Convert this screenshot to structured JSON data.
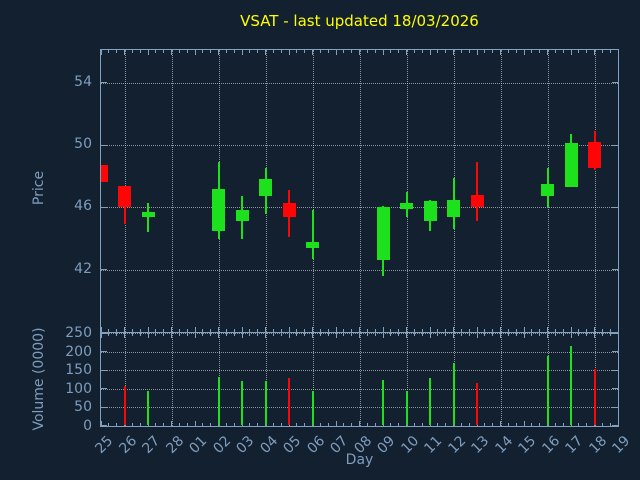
{
  "title": "VSAT - last updated 18/03/2026",
  "colors": {
    "background": "#12202f",
    "frame": "#82a0c0",
    "text": "#7e9dbd",
    "title": "#ffff00",
    "up": "#1ee11e",
    "down": "#ff0505",
    "grid": "rgba(205,213,222,0.65)"
  },
  "price_axis": {
    "label": "Price",
    "ticks": [
      42,
      46,
      50,
      54
    ],
    "range": [
      38.0,
      56.1
    ]
  },
  "volume_axis": {
    "label": "Volume (0000)",
    "ticks": [
      0,
      50,
      100,
      150,
      200,
      250
    ],
    "range": [
      0,
      250
    ]
  },
  "x_axis": {
    "label": "Day",
    "categories": [
      "25",
      "26",
      "27",
      "28",
      "01",
      "02",
      "03",
      "04",
      "05",
      "06",
      "07",
      "08",
      "09",
      "10",
      "11",
      "12",
      "13",
      "14",
      "15",
      "16",
      "17",
      "18",
      "19"
    ],
    "gridline_categories": [
      "26",
      "28",
      "02",
      "04",
      "06",
      "08",
      "10",
      "12",
      "14",
      "16",
      "18"
    ]
  },
  "chart_data": {
    "type": "candlestick",
    "title": "VSAT - last updated 18/03/2026",
    "xlabel": "Day",
    "ylabel": "Price",
    "ylabel2": "Volume (0000)",
    "price_ylim": [
      38.0,
      56.1
    ],
    "volume_ylim": [
      0,
      250
    ],
    "legend": "none",
    "grid": "dotted",
    "categories": [
      "25",
      "26",
      "27",
      "28",
      "01",
      "02",
      "03",
      "04",
      "05",
      "06",
      "07",
      "08",
      "09",
      "10",
      "11",
      "12",
      "13",
      "14",
      "15",
      "16",
      "17",
      "18",
      "19"
    ],
    "candles": [
      {
        "day": "25",
        "open": 48.7,
        "high": 48.7,
        "low": 47.6,
        "close": 47.6,
        "direction": "down",
        "volume": null
      },
      {
        "day": "26",
        "open": 47.4,
        "high": 47.4,
        "low": 44.9,
        "close": 46.0,
        "direction": "down",
        "volume": 108
      },
      {
        "day": "27",
        "open": 45.4,
        "high": 46.3,
        "low": 44.4,
        "close": 45.7,
        "direction": "up",
        "volume": 95
      },
      {
        "day": "02",
        "open": 44.5,
        "high": 48.9,
        "low": 44.0,
        "close": 47.2,
        "direction": "up",
        "volume": 131
      },
      {
        "day": "03",
        "open": 45.1,
        "high": 46.7,
        "low": 44.0,
        "close": 45.8,
        "direction": "up",
        "volume": 120
      },
      {
        "day": "04",
        "open": 46.7,
        "high": 48.5,
        "low": 45.6,
        "close": 47.8,
        "direction": "up",
        "volume": 120
      },
      {
        "day": "05",
        "open": 46.3,
        "high": 47.1,
        "low": 44.1,
        "close": 45.4,
        "direction": "down",
        "volume": 128
      },
      {
        "day": "06",
        "open": 43.4,
        "high": 45.8,
        "low": 42.7,
        "close": 43.8,
        "direction": "up",
        "volume": 95
      },
      {
        "day": "09",
        "open": 42.6,
        "high": 46.1,
        "low": 41.6,
        "close": 46.0,
        "direction": "up",
        "volume": 125
      },
      {
        "day": "10",
        "open": 45.9,
        "high": 47.0,
        "low": 45.4,
        "close": 46.3,
        "direction": "up",
        "volume": 95
      },
      {
        "day": "11",
        "open": 45.1,
        "high": 46.5,
        "low": 44.5,
        "close": 46.4,
        "direction": "up",
        "volume": 128
      },
      {
        "day": "12",
        "open": 45.4,
        "high": 47.9,
        "low": 44.6,
        "close": 46.5,
        "direction": "up",
        "volume": 170
      },
      {
        "day": "13",
        "open": 46.8,
        "high": 48.9,
        "low": 45.1,
        "close": 46.0,
        "direction": "down",
        "volume": 115
      },
      {
        "day": "16",
        "open": 46.7,
        "high": 48.5,
        "low": 46.0,
        "close": 47.5,
        "direction": "up",
        "volume": 188
      },
      {
        "day": "17",
        "open": 47.3,
        "high": 50.7,
        "low": 47.3,
        "close": 50.1,
        "direction": "up",
        "volume": 215
      },
      {
        "day": "18",
        "open": 50.2,
        "high": 50.9,
        "low": 48.4,
        "close": 48.5,
        "direction": "down",
        "volume": 152
      }
    ],
    "non_trading_days": [
      "28",
      "01",
      "07",
      "08",
      "14",
      "15",
      "19"
    ]
  }
}
